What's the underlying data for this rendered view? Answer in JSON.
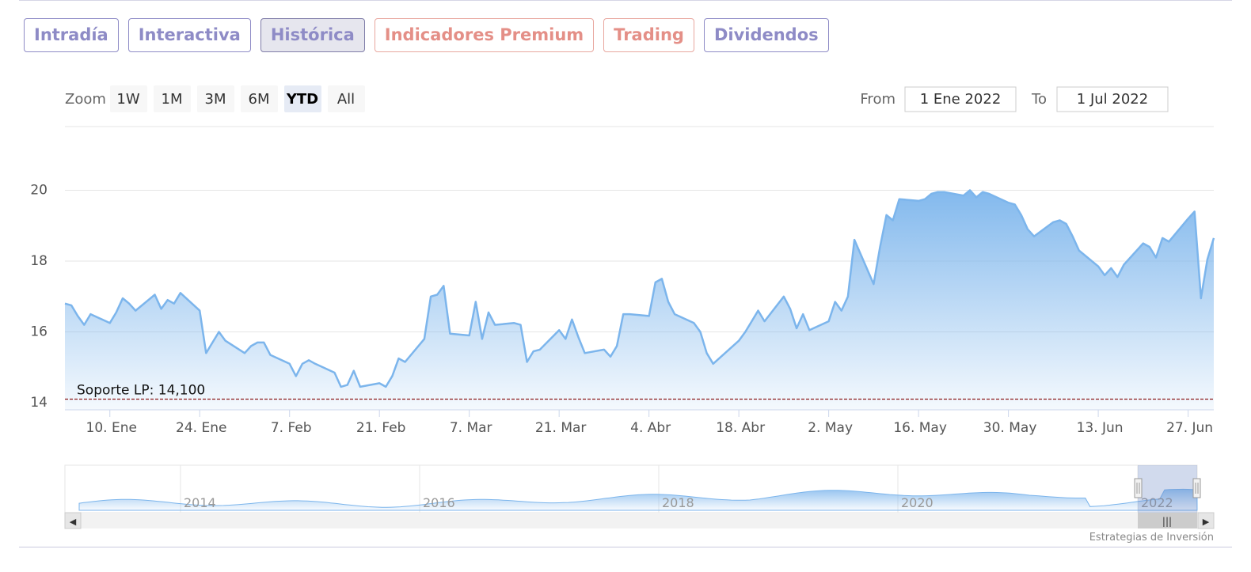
{
  "tabs": [
    {
      "label": "Intradía",
      "style": "purple"
    },
    {
      "label": "Interactiva",
      "style": "purple"
    },
    {
      "label": "Histórica",
      "style": "active"
    },
    {
      "label": "Indicadores Premium",
      "style": "warm"
    },
    {
      "label": "Trading",
      "style": "warm"
    },
    {
      "label": "Dividendos",
      "style": "purple"
    }
  ],
  "zoom": {
    "label": "Zoom",
    "buttons": [
      "1W",
      "1M",
      "3M",
      "6M",
      "YTD",
      "All"
    ],
    "selected": "YTD"
  },
  "range": {
    "from_label": "From",
    "from_value": "1 Ene 2022",
    "to_label": "To",
    "to_value": "1 Jul 2022"
  },
  "credit": "Estrategias de Inversión",
  "colors": {
    "series": "#7cb5ec",
    "support": "#8b1a1a",
    "tab_purple": "#8e8bc6",
    "tab_warm": "#e48f87"
  },
  "chart_data": {
    "type": "area",
    "x_range": [
      "2022-01-03",
      "2022-07-01"
    ],
    "ylim": [
      14,
      21
    ],
    "y_ticks": [
      14,
      16,
      18,
      20
    ],
    "x_ticks": [
      {
        "date": "2022-01-10",
        "label": "10. Ene"
      },
      {
        "date": "2022-01-24",
        "label": "24. Ene"
      },
      {
        "date": "2022-02-07",
        "label": "7. Feb"
      },
      {
        "date": "2022-02-21",
        "label": "21. Feb"
      },
      {
        "date": "2022-03-07",
        "label": "7. Mar"
      },
      {
        "date": "2022-03-21",
        "label": "21. Mar"
      },
      {
        "date": "2022-04-04",
        "label": "4. Abr"
      },
      {
        "date": "2022-04-18",
        "label": "18. Abr"
      },
      {
        "date": "2022-05-02",
        "label": "2. May"
      },
      {
        "date": "2022-05-16",
        "label": "16. May"
      },
      {
        "date": "2022-05-30",
        "label": "30. May"
      },
      {
        "date": "2022-06-13",
        "label": "13. Jun"
      },
      {
        "date": "2022-06-27",
        "label": "27. Jun"
      }
    ],
    "plot_line": {
      "value": 14.1,
      "label": "Soporte LP: 14,100"
    },
    "series": [
      {
        "values": [
          {
            "x": "2022-01-03",
            "y": 16.8
          },
          {
            "x": "2022-01-04",
            "y": 16.75
          },
          {
            "x": "2022-01-05",
            "y": 16.45
          },
          {
            "x": "2022-01-06",
            "y": 16.2
          },
          {
            "x": "2022-01-07",
            "y": 16.5
          },
          {
            "x": "2022-01-10",
            "y": 16.25
          },
          {
            "x": "2022-01-11",
            "y": 16.55
          },
          {
            "x": "2022-01-12",
            "y": 16.95
          },
          {
            "x": "2022-01-13",
            "y": 16.8
          },
          {
            "x": "2022-01-14",
            "y": 16.6
          },
          {
            "x": "2022-01-17",
            "y": 17.05
          },
          {
            "x": "2022-01-18",
            "y": 16.65
          },
          {
            "x": "2022-01-19",
            "y": 16.9
          },
          {
            "x": "2022-01-20",
            "y": 16.8
          },
          {
            "x": "2022-01-21",
            "y": 17.1
          },
          {
            "x": "2022-01-24",
            "y": 16.6
          },
          {
            "x": "2022-01-25",
            "y": 15.4
          },
          {
            "x": "2022-01-26",
            "y": 15.7
          },
          {
            "x": "2022-01-27",
            "y": 16.0
          },
          {
            "x": "2022-01-28",
            "y": 15.75
          },
          {
            "x": "2022-01-31",
            "y": 15.4
          },
          {
            "x": "2022-02-01",
            "y": 15.6
          },
          {
            "x": "2022-02-02",
            "y": 15.7
          },
          {
            "x": "2022-02-03",
            "y": 15.7
          },
          {
            "x": "2022-02-04",
            "y": 15.35
          },
          {
            "x": "2022-02-07",
            "y": 15.1
          },
          {
            "x": "2022-02-08",
            "y": 14.75
          },
          {
            "x": "2022-02-09",
            "y": 15.1
          },
          {
            "x": "2022-02-10",
            "y": 15.2
          },
          {
            "x": "2022-02-11",
            "y": 15.1
          },
          {
            "x": "2022-02-14",
            "y": 14.85
          },
          {
            "x": "2022-02-15",
            "y": 14.45
          },
          {
            "x": "2022-02-16",
            "y": 14.5
          },
          {
            "x": "2022-02-17",
            "y": 14.9
          },
          {
            "x": "2022-02-18",
            "y": 14.45
          },
          {
            "x": "2022-02-21",
            "y": 14.55
          },
          {
            "x": "2022-02-22",
            "y": 14.45
          },
          {
            "x": "2022-02-23",
            "y": 14.75
          },
          {
            "x": "2022-02-24",
            "y": 15.25
          },
          {
            "x": "2022-02-25",
            "y": 15.15
          },
          {
            "x": "2022-02-28",
            "y": 15.8
          },
          {
            "x": "2022-03-01",
            "y": 17.0
          },
          {
            "x": "2022-03-02",
            "y": 17.05
          },
          {
            "x": "2022-03-03",
            "y": 17.3
          },
          {
            "x": "2022-03-04",
            "y": 15.95
          },
          {
            "x": "2022-03-07",
            "y": 15.9
          },
          {
            "x": "2022-03-08",
            "y": 16.85
          },
          {
            "x": "2022-03-09",
            "y": 15.8
          },
          {
            "x": "2022-03-10",
            "y": 16.55
          },
          {
            "x": "2022-03-11",
            "y": 16.2
          },
          {
            "x": "2022-03-14",
            "y": 16.25
          },
          {
            "x": "2022-03-15",
            "y": 16.2
          },
          {
            "x": "2022-03-16",
            "y": 15.15
          },
          {
            "x": "2022-03-17",
            "y": 15.45
          },
          {
            "x": "2022-03-18",
            "y": 15.5
          },
          {
            "x": "2022-03-21",
            "y": 16.05
          },
          {
            "x": "2022-03-22",
            "y": 15.8
          },
          {
            "x": "2022-03-23",
            "y": 16.35
          },
          {
            "x": "2022-03-24",
            "y": 15.85
          },
          {
            "x": "2022-03-25",
            "y": 15.4
          },
          {
            "x": "2022-03-28",
            "y": 15.5
          },
          {
            "x": "2022-03-29",
            "y": 15.3
          },
          {
            "x": "2022-03-30",
            "y": 15.6
          },
          {
            "x": "2022-03-31",
            "y": 16.5
          },
          {
            "x": "2022-04-01",
            "y": 16.5
          },
          {
            "x": "2022-04-04",
            "y": 16.45
          },
          {
            "x": "2022-04-05",
            "y": 17.4
          },
          {
            "x": "2022-04-06",
            "y": 17.5
          },
          {
            "x": "2022-04-07",
            "y": 16.85
          },
          {
            "x": "2022-04-08",
            "y": 16.5
          },
          {
            "x": "2022-04-11",
            "y": 16.25
          },
          {
            "x": "2022-04-12",
            "y": 16.0
          },
          {
            "x": "2022-04-13",
            "y": 15.4
          },
          {
            "x": "2022-04-14",
            "y": 15.1
          },
          {
            "x": "2022-04-18",
            "y": 15.75
          },
          {
            "x": "2022-04-19",
            "y": 16.0
          },
          {
            "x": "2022-04-20",
            "y": 16.3
          },
          {
            "x": "2022-04-21",
            "y": 16.6
          },
          {
            "x": "2022-04-22",
            "y": 16.3
          },
          {
            "x": "2022-04-25",
            "y": 17.0
          },
          {
            "x": "2022-04-26",
            "y": 16.65
          },
          {
            "x": "2022-04-27",
            "y": 16.1
          },
          {
            "x": "2022-04-28",
            "y": 16.5
          },
          {
            "x": "2022-04-29",
            "y": 16.05
          },
          {
            "x": "2022-05-02",
            "y": 16.3
          },
          {
            "x": "2022-05-03",
            "y": 16.85
          },
          {
            "x": "2022-05-04",
            "y": 16.6
          },
          {
            "x": "2022-05-05",
            "y": 17.0
          },
          {
            "x": "2022-05-06",
            "y": 18.6
          },
          {
            "x": "2022-05-09",
            "y": 17.35
          },
          {
            "x": "2022-05-10",
            "y": 18.4
          },
          {
            "x": "2022-05-11",
            "y": 19.3
          },
          {
            "x": "2022-05-12",
            "y": 19.15
          },
          {
            "x": "2022-05-13",
            "y": 19.75
          },
          {
            "x": "2022-05-16",
            "y": 19.7
          },
          {
            "x": "2022-05-17",
            "y": 19.75
          },
          {
            "x": "2022-05-18",
            "y": 19.9
          },
          {
            "x": "2022-05-19",
            "y": 19.95
          },
          {
            "x": "2022-05-20",
            "y": 19.95
          },
          {
            "x": "2022-05-23",
            "y": 19.85
          },
          {
            "x": "2022-05-24",
            "y": 20.0
          },
          {
            "x": "2022-05-25",
            "y": 19.8
          },
          {
            "x": "2022-05-26",
            "y": 19.95
          },
          {
            "x": "2022-05-27",
            "y": 19.9
          },
          {
            "x": "2022-05-30",
            "y": 19.65
          },
          {
            "x": "2022-05-31",
            "y": 19.6
          },
          {
            "x": "2022-06-01",
            "y": 19.3
          },
          {
            "x": "2022-06-02",
            "y": 18.9
          },
          {
            "x": "2022-06-03",
            "y": 18.7
          },
          {
            "x": "2022-06-06",
            "y": 19.1
          },
          {
            "x": "2022-06-07",
            "y": 19.15
          },
          {
            "x": "2022-06-08",
            "y": 19.05
          },
          {
            "x": "2022-06-09",
            "y": 18.7
          },
          {
            "x": "2022-06-10",
            "y": 18.3
          },
          {
            "x": "2022-06-13",
            "y": 17.85
          },
          {
            "x": "2022-06-14",
            "y": 17.6
          },
          {
            "x": "2022-06-15",
            "y": 17.8
          },
          {
            "x": "2022-06-16",
            "y": 17.55
          },
          {
            "x": "2022-06-17",
            "y": 17.9
          },
          {
            "x": "2022-06-20",
            "y": 18.5
          },
          {
            "x": "2022-06-21",
            "y": 18.4
          },
          {
            "x": "2022-06-22",
            "y": 18.1
          },
          {
            "x": "2022-06-23",
            "y": 18.65
          },
          {
            "x": "2022-06-24",
            "y": 18.55
          },
          {
            "x": "2022-06-27",
            "y": 19.2
          },
          {
            "x": "2022-06-28",
            "y": 19.4
          },
          {
            "x": "2022-06-29",
            "y": 16.95
          },
          {
            "x": "2022-06-30",
            "y": 18.05
          },
          {
            "x": "2022-07-01",
            "y": 18.65
          }
        ]
      }
    ]
  },
  "navigator": {
    "year_labels": [
      "2014",
      "2016",
      "2018",
      "2020",
      "2022"
    ],
    "scrollbar_handle": "|||",
    "left_arrow": "◀",
    "right_arrow": "▶"
  }
}
